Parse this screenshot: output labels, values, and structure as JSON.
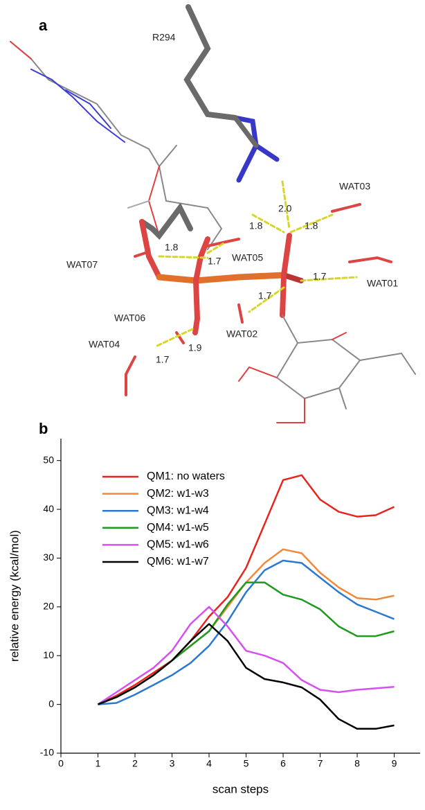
{
  "panel_a": {
    "label": "a",
    "residue": "R294",
    "waters": [
      "WAT03",
      "WAT07",
      "WAT05",
      "WAT01",
      "WAT06",
      "WAT02",
      "WAT04"
    ],
    "distances": [
      "2.0",
      "1.8",
      "1.8",
      "1.8",
      "1.7",
      "1.7",
      "1.7",
      "1.9",
      "1.7"
    ]
  },
  "panel_b_label": "b",
  "chart_data": {
    "type": "line",
    "x_label": "scan steps",
    "y_label": "relative energy (kcal/mol)",
    "x": [
      1,
      1.5,
      2,
      2.5,
      3,
      3.5,
      4,
      4.5,
      5,
      5.5,
      6,
      6.5,
      7,
      7.5,
      8,
      8.5,
      9
    ],
    "series": [
      {
        "name": "QM1: no waters",
        "color": "#e8231f",
        "values": [
          0,
          1.8,
          4,
          6.5,
          9,
          13,
          18,
          22,
          28,
          37,
          46,
          47,
          42,
          39.5,
          38.5,
          38.8,
          40.5
        ]
      },
      {
        "name": "QM2: w1-w3",
        "color": "#f0893a",
        "values": [
          0,
          1.5,
          3.5,
          6,
          9,
          12,
          15,
          20,
          25,
          29,
          31.8,
          31,
          27,
          24,
          21.8,
          21.5,
          22.3
        ]
      },
      {
        "name": "QM3: w1-w4",
        "color": "#2a78d4",
        "values": [
          0,
          0.3,
          2,
          4,
          6,
          8.5,
          12,
          17,
          23,
          27.5,
          29.5,
          29,
          26,
          23,
          20.5,
          19,
          17.5
        ]
      },
      {
        "name": "QM4: w1-w5",
        "color": "#1e9a1e",
        "values": [
          0,
          1.5,
          3.5,
          6,
          9,
          12,
          15,
          20.5,
          25,
          25,
          22.5,
          21.5,
          19.5,
          16,
          14,
          14,
          15
        ]
      },
      {
        "name": "QM5: w1-w6",
        "color": "#d64ff0",
        "values": [
          0,
          2.5,
          5,
          7.5,
          11,
          16.5,
          20,
          16,
          11,
          10,
          8.5,
          5,
          3,
          2.5,
          3,
          3.3,
          3.6
        ]
      },
      {
        "name": "QM6: w1-w7",
        "color": "#000000",
        "values": [
          0,
          1.5,
          3.5,
          6,
          9,
          13,
          16.5,
          13,
          7.5,
          5.2,
          4.5,
          3.5,
          1,
          -3,
          -5,
          -5,
          -4.3
        ]
      }
    ],
    "xlim": [
      0,
      9.7
    ],
    "xticks": [
      0,
      1,
      2,
      3,
      4,
      5,
      6,
      7,
      8,
      9
    ],
    "ylim": [
      -10,
      54.5
    ],
    "yticks": [
      -10,
      0,
      10,
      20,
      30,
      40,
      50
    ],
    "grid": false,
    "legend": "upper left"
  }
}
